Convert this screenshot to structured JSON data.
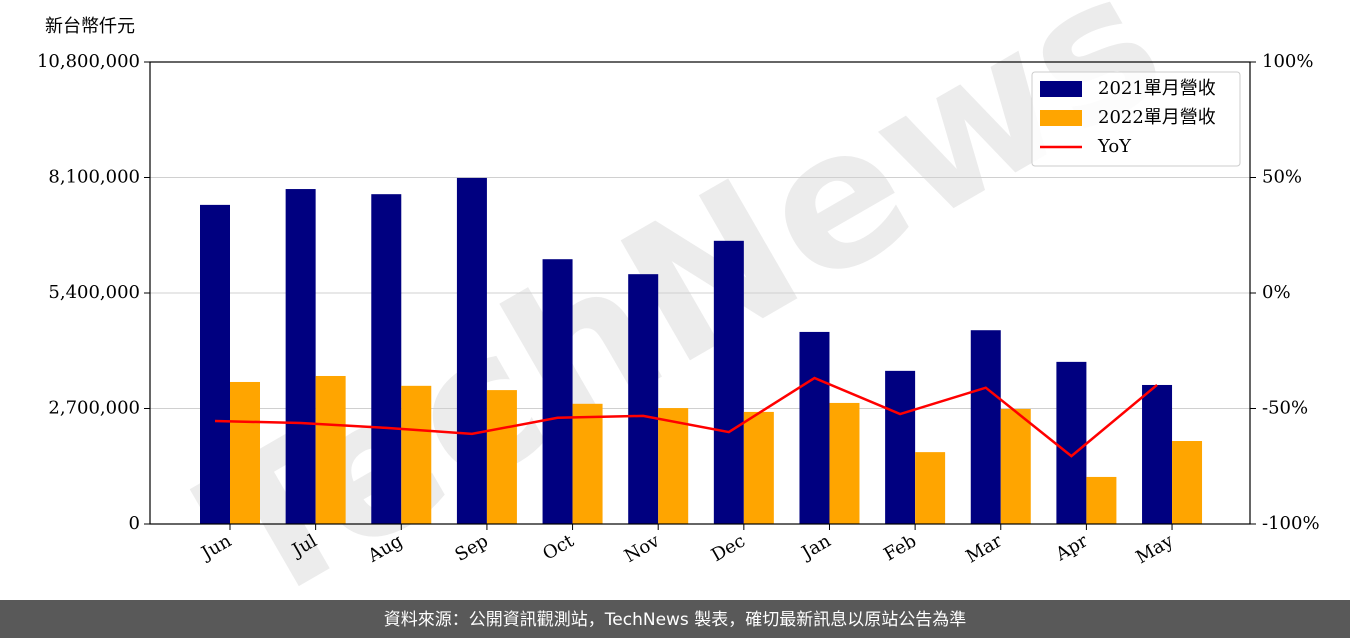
{
  "chart_data": {
    "type": "bar-line",
    "y_label": "新台幣仟元",
    "watermark": "TechNews",
    "source": "資料來源：公開資訊觀測站，TechNews 製表，確切最新訊息以原站公告為準",
    "categories": [
      "Jun",
      "Jul",
      "Aug",
      "Sep",
      "Oct",
      "Nov",
      "Dec",
      "Jan",
      "Feb",
      "Mar",
      "Apr",
      "May"
    ],
    "series": [
      {
        "name": "2021單月營收",
        "color": "#000080",
        "type": "bar",
        "values": [
          7460000,
          7830000,
          7710000,
          8090000,
          6190000,
          5840000,
          6620000,
          4490000,
          3580000,
          4530000,
          3790000,
          3250000
        ]
      },
      {
        "name": "2022單月營收",
        "color": "#ffa500",
        "type": "bar",
        "values": [
          3320000,
          3460000,
          3230000,
          3130000,
          2810000,
          2710000,
          2620000,
          2830000,
          1680000,
          2690000,
          1100000,
          1940000
        ]
      },
      {
        "name": "YoY",
        "color": "#ff0000",
        "type": "line",
        "axis": "y2",
        "values": [
          -55.4,
          -56.3,
          -58.4,
          -61,
          -54,
          -53.2,
          -60.2,
          -36.8,
          -52.4,
          -41,
          -70.6,
          -39.8
        ]
      }
    ],
    "ylim": [
      0,
      10800000
    ],
    "yticks": [
      0,
      {
        "value": 2700000,
        "label": "2,700,000"
      },
      {
        "value": 5400000,
        "label": "5,400,000"
      },
      {
        "value": 8100000,
        "label": "8,100,000"
      },
      {
        "value": 10800000,
        "label": "10,800,000"
      }
    ],
    "y2lim": [
      -100,
      100
    ],
    "y2ticks": [
      {
        "value": -100,
        "label": "-100%"
      },
      {
        "value": -50,
        "label": "-50%"
      },
      {
        "value": 0,
        "label": "0%"
      },
      {
        "value": 50,
        "label": "50%"
      },
      {
        "value": 100,
        "label": "100%"
      }
    ],
    "grid": true,
    "legend": "upper right"
  }
}
